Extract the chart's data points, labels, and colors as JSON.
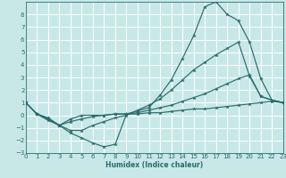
{
  "xlabel": "Humidex (Indice chaleur)",
  "bg_color": "#c8e8e8",
  "grid_color": "#ffffff",
  "line_color": "#2a6b6b",
  "xlim": [
    0,
    23
  ],
  "ylim": [
    -3,
    9
  ],
  "xticks": [
    0,
    1,
    2,
    3,
    4,
    5,
    6,
    7,
    8,
    9,
    10,
    11,
    12,
    13,
    14,
    15,
    16,
    17,
    18,
    19,
    20,
    21,
    22,
    23
  ],
  "yticks": [
    -3,
    -2,
    -1,
    0,
    1,
    2,
    3,
    4,
    5,
    6,
    7,
    8
  ],
  "lines": [
    {
      "x": [
        0,
        1,
        2,
        3,
        4,
        5,
        6,
        7,
        8,
        9,
        10,
        11,
        12,
        13,
        14,
        15,
        16,
        17,
        18,
        19,
        20,
        21,
        22,
        23
      ],
      "y": [
        1.0,
        0.1,
        -0.4,
        -0.8,
        -1.4,
        -1.8,
        -2.2,
        -2.5,
        -2.3,
        0.1,
        0.35,
        0.6,
        1.6,
        2.8,
        4.5,
        6.3,
        8.6,
        9.0,
        8.0,
        7.5,
        5.8,
        2.9,
        1.2,
        1.0
      ]
    },
    {
      "x": [
        0,
        1,
        2,
        3,
        4,
        5,
        6,
        7,
        8,
        9,
        10,
        11,
        12,
        13,
        14,
        15,
        16,
        17,
        18,
        19,
        20,
        21,
        22,
        23
      ],
      "y": [
        1.0,
        0.1,
        -0.3,
        -0.8,
        -1.2,
        -1.2,
        -0.8,
        -0.5,
        -0.2,
        0.0,
        0.4,
        0.8,
        1.3,
        2.0,
        2.8,
        3.6,
        4.2,
        4.8,
        5.3,
        5.8,
        3.1,
        1.5,
        1.2,
        1.0
      ]
    },
    {
      "x": [
        0,
        1,
        2,
        3,
        4,
        5,
        6,
        7,
        8,
        9,
        10,
        11,
        12,
        13,
        14,
        15,
        16,
        17,
        18,
        19,
        20,
        21,
        22,
        23
      ],
      "y": [
        1.0,
        0.1,
        -0.3,
        -0.8,
        -0.5,
        -0.3,
        -0.1,
        0.0,
        0.1,
        0.1,
        0.2,
        0.4,
        0.6,
        0.8,
        1.1,
        1.4,
        1.7,
        2.1,
        2.5,
        2.9,
        3.2,
        1.5,
        1.2,
        1.0
      ]
    },
    {
      "x": [
        0,
        1,
        2,
        3,
        4,
        5,
        6,
        7,
        8,
        9,
        10,
        11,
        12,
        13,
        14,
        15,
        16,
        17,
        18,
        19,
        20,
        21,
        22,
        23
      ],
      "y": [
        1.0,
        0.1,
        -0.2,
        -0.8,
        -0.3,
        0.0,
        0.0,
        0.0,
        0.1,
        0.1,
        0.1,
        0.2,
        0.2,
        0.3,
        0.4,
        0.5,
        0.5,
        0.6,
        0.7,
        0.8,
        0.9,
        1.0,
        1.1,
        1.0
      ]
    }
  ]
}
